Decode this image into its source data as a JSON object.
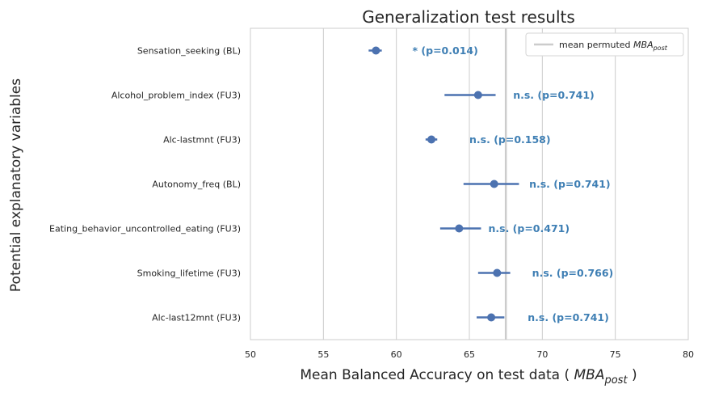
{
  "chart_data": {
    "type": "forest",
    "title": "Generalization test results",
    "xlabel_prefix": "Mean Balanced Accuracy on test data ( ",
    "xlabel_var": "MBA",
    "xlabel_sub": "post",
    "xlabel_suffix": " )",
    "ylabel": "Potential explanatory variables",
    "xlim": [
      50,
      80
    ],
    "xticks": [
      50,
      55,
      60,
      65,
      70,
      75,
      80
    ],
    "grid": true,
    "colors": {
      "point": "#4c72b0",
      "annotation": "#3f7fb4",
      "reference": "#cccccc"
    },
    "reference_line": {
      "x": 67.5,
      "legend_prefix": "mean permuted ",
      "legend_var": "MBA",
      "legend_sub": "post",
      "legend_position": "top-right"
    },
    "categories": [
      "Sensation_seeking (BL)",
      "Alcohol_problem_index (FU3)",
      "Alc-lastmnt (FU3)",
      "Autonomy_freq (BL)",
      "Eating_behavior_uncontrolled_eating (FU3)",
      "Smoking_lifetime (FU3)",
      "Alc-last12mnt (FU3)"
    ],
    "series": [
      {
        "mean": [
          58.6,
          65.6,
          62.4,
          66.7,
          64.3,
          66.9,
          66.5
        ],
        "ci_low": [
          58.1,
          63.3,
          62.0,
          64.6,
          63.0,
          65.6,
          65.5
        ],
        "ci_high": [
          59.0,
          66.8,
          62.8,
          68.4,
          65.8,
          67.8,
          67.4
        ]
      }
    ],
    "annotations": [
      {
        "text": "* (p=0.014)",
        "x": 61.1
      },
      {
        "text": "n.s. (p=0.741)",
        "x": 68.0
      },
      {
        "text": "n.s. (p=0.158)",
        "x": 65.0
      },
      {
        "text": "n.s. (p=0.741)",
        "x": 69.1
      },
      {
        "text": "n.s. (p=0.471)",
        "x": 66.3
      },
      {
        "text": "n.s. (p=0.766)",
        "x": 69.3
      },
      {
        "text": "n.s. (p=0.741)",
        "x": 69.0
      }
    ]
  }
}
